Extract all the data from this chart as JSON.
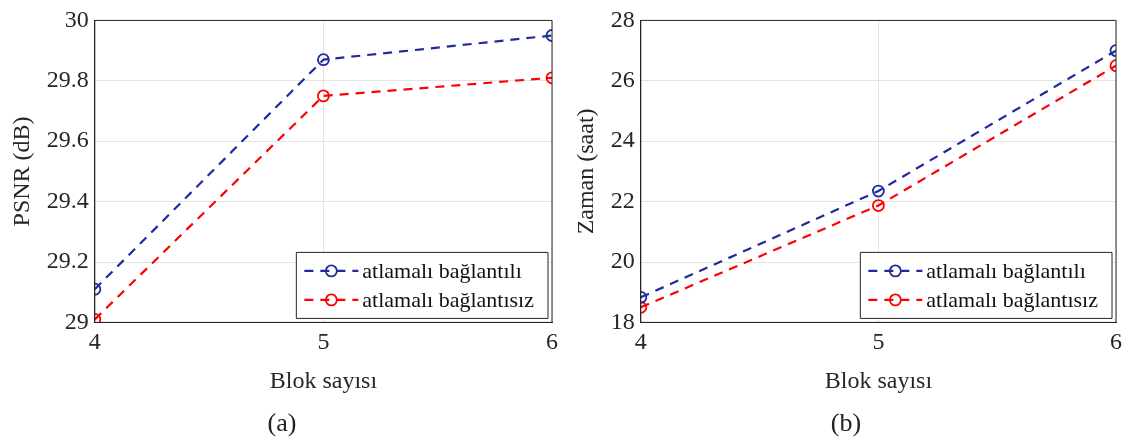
{
  "chart_data": [
    {
      "type": "line",
      "xlabel": "Blok sayısı",
      "ylabel": "PSNR (dB)",
      "x": [
        4,
        5,
        6
      ],
      "xlim": [
        4,
        6
      ],
      "xticks": [
        4,
        5,
        6
      ],
      "ylim": [
        29,
        30
      ],
      "yticks": [
        29,
        29.2,
        29.4,
        29.6,
        29.8,
        30
      ],
      "grid": true,
      "legend": "bottom right",
      "marker": "circle",
      "line_style": "dashed",
      "annotations": [
        "(a)"
      ],
      "series": [
        {
          "name": "atlamalı bağlantılı",
          "color": "#1f2a9c",
          "values": [
            29.11,
            29.87,
            29.95
          ]
        },
        {
          "name": "atlamalı bağlantısız",
          "color": "#ff0000",
          "values": [
            29.01,
            29.75,
            29.81
          ]
        }
      ]
    },
    {
      "type": "line",
      "xlabel": "Blok sayısı",
      "ylabel": "Zaman (saat)",
      "x": [
        4,
        5,
        6
      ],
      "xlim": [
        4,
        6
      ],
      "xticks": [
        4,
        5,
        6
      ],
      "ylim": [
        18,
        28
      ],
      "yticks": [
        18,
        20,
        22,
        24,
        26,
        28
      ],
      "grid": true,
      "legend": "bottom right",
      "marker": "circle",
      "line_style": "dashed",
      "annotations": [
        "(b)"
      ],
      "series": [
        {
          "name": "atlamalı bağlantılı",
          "color": "#1f2a9c",
          "values": [
            18.83,
            22.35,
            27.0
          ]
        },
        {
          "name": "atlamalı bağlantısız",
          "color": "#ff0000",
          "values": [
            18.5,
            21.87,
            26.5
          ]
        }
      ]
    }
  ]
}
